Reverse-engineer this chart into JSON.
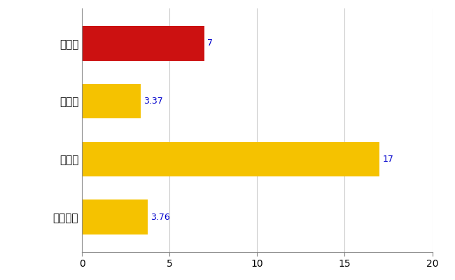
{
  "categories": [
    "白山市",
    "県平均",
    "県最大",
    "全国平均"
  ],
  "values": [
    7,
    3.37,
    17,
    3.76
  ],
  "bar_colors": [
    "#CC1111",
    "#F5C200",
    "#F5C200",
    "#F5C200"
  ],
  "value_labels": [
    "7",
    "3.37",
    "17",
    "3.76"
  ],
  "xlim": [
    0,
    20
  ],
  "xticks": [
    0,
    5,
    10,
    15,
    20
  ],
  "background_color": "#ffffff",
  "grid_color": "#cccccc",
  "label_color": "#0000cc",
  "bar_height": 0.6,
  "figsize": [
    6.5,
    4.0
  ],
  "dpi": 100
}
